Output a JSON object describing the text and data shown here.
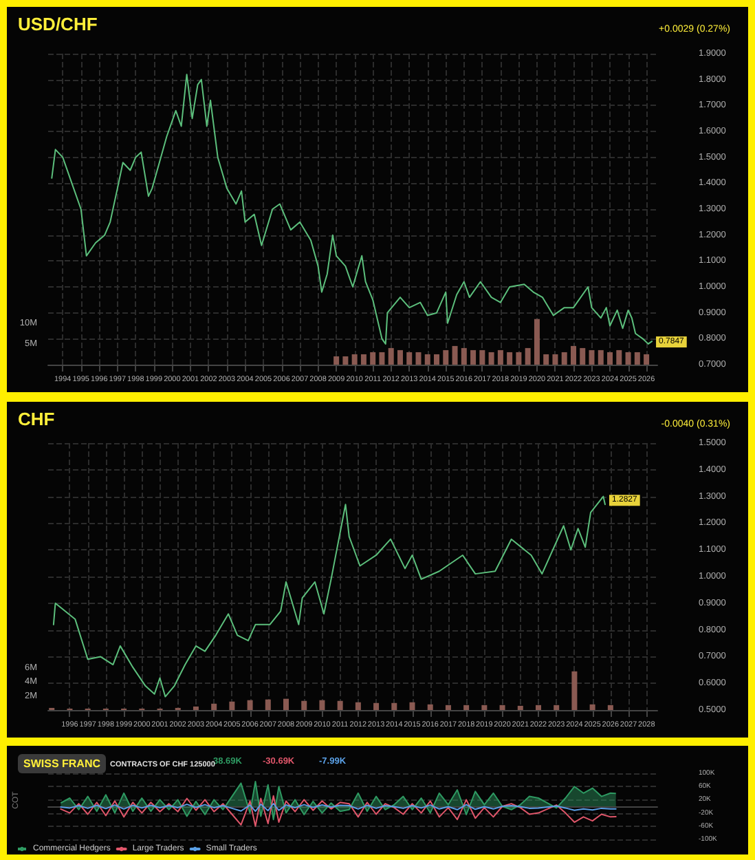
{
  "chart_data": [
    {
      "type": "line",
      "title": "USD/CHF",
      "subtitle": "+0.0029 (0.27%)",
      "grid": true,
      "legend": false,
      "marker": "none",
      "xlim": [
        1993.2,
        2026.6
      ],
      "xticks": [
        1994,
        1995,
        1996,
        1997,
        1998,
        1999,
        2000,
        2001,
        2002,
        2003,
        2004,
        2005,
        2006,
        2007,
        2008,
        2009,
        2010,
        2011,
        2012,
        2013,
        2014,
        2015,
        2016,
        2017,
        2018,
        2019,
        2020,
        2021,
        2022,
        2023,
        2024,
        2025,
        2026
      ],
      "ylim": [
        0.7,
        1.9
      ],
      "yticks": [
        {
          "value": 0.7,
          "label": "0.7000"
        },
        {
          "value": 0.8,
          "label": "0.8000"
        },
        {
          "value": 0.9,
          "label": "0.9000"
        },
        {
          "value": 1.0,
          "label": "1.0000"
        },
        {
          "value": 1.1,
          "label": "1.1000"
        },
        {
          "value": 1.2,
          "label": "1.2000"
        },
        {
          "value": 1.3,
          "label": "1.3000"
        },
        {
          "value": 1.4,
          "label": "1.4000"
        },
        {
          "value": 1.5,
          "label": "1.5000"
        },
        {
          "value": 1.6,
          "label": "1.6000"
        },
        {
          "value": 1.7,
          "label": "1.7000"
        },
        {
          "value": 1.8,
          "label": "1.8000"
        },
        {
          "value": 1.9,
          "label": "1.9000"
        }
      ],
      "y2lim": [
        0,
        75
      ],
      "y2ticks": [
        {
          "value": 5,
          "label": "5M"
        },
        {
          "value": 10,
          "label": "10M"
        }
      ],
      "annotations": [
        {
          "text": "0.7847",
          "x": 2026.3,
          "y": 0.7847
        }
      ],
      "series": [
        {
          "color": "#5cbf7c",
          "x": [
            1993.4,
            1993.6,
            1994.0,
            1994.5,
            1995.0,
            1995.3,
            1995.8,
            1996.3,
            1996.6,
            1997.0,
            1997.3,
            1997.7,
            1998.0,
            1998.3,
            1998.7,
            1998.9,
            1999.3,
            1999.7,
            2000.2,
            2000.5,
            2000.8,
            2001.1,
            2001.4,
            2001.6,
            2001.9,
            2002.1,
            2002.5,
            2003.0,
            2003.5,
            2003.8,
            2004.0,
            2004.5,
            2004.9,
            2005.5,
            2005.9,
            2006.5,
            2007.0,
            2007.6,
            2008.0,
            2008.2,
            2008.5,
            2008.8,
            2009.0,
            2009.5,
            2009.9,
            2010.4,
            2010.6,
            2011.0,
            2011.5,
            2011.7,
            2011.8,
            2012.5,
            2013.0,
            2013.6,
            2014.0,
            2014.5,
            2015.0,
            2015.1,
            2015.6,
            2016.0,
            2016.3,
            2016.9,
            2017.5,
            2018.0,
            2018.5,
            2019.3,
            2019.8,
            2020.3,
            2020.9,
            2021.5,
            2022.0,
            2022.8,
            2023.0,
            2023.5,
            2023.8,
            2024.0,
            2024.4,
            2024.7,
            2025.0,
            2025.2,
            2025.4,
            2025.8,
            2026.1,
            2026.3
          ],
          "values": [
            1.42,
            1.53,
            1.5,
            1.4,
            1.3,
            1.12,
            1.17,
            1.2,
            1.25,
            1.38,
            1.48,
            1.45,
            1.5,
            1.52,
            1.35,
            1.38,
            1.48,
            1.58,
            1.68,
            1.62,
            1.82,
            1.65,
            1.78,
            1.8,
            1.62,
            1.72,
            1.5,
            1.38,
            1.32,
            1.37,
            1.25,
            1.28,
            1.16,
            1.3,
            1.32,
            1.22,
            1.25,
            1.18,
            1.08,
            0.98,
            1.05,
            1.2,
            1.12,
            1.08,
            1.0,
            1.12,
            1.02,
            0.95,
            0.8,
            0.78,
            0.9,
            0.96,
            0.92,
            0.94,
            0.89,
            0.9,
            0.98,
            0.86,
            0.97,
            1.02,
            0.96,
            1.02,
            0.96,
            0.94,
            1.0,
            1.01,
            0.98,
            0.96,
            0.89,
            0.92,
            0.92,
            1.0,
            0.92,
            0.88,
            0.92,
            0.85,
            0.91,
            0.84,
            0.91,
            0.88,
            0.82,
            0.8,
            0.78,
            0.79
          ]
        },
        {
          "type": "bar",
          "axis": "y2",
          "color": "#8a5a52",
          "x": [
            2009.0,
            2009.5,
            2010.0,
            2010.5,
            2011.0,
            2011.5,
            2012.0,
            2012.5,
            2013.0,
            2013.5,
            2014.0,
            2014.5,
            2015.0,
            2015.5,
            2016.0,
            2016.5,
            2017.0,
            2017.5,
            2018.0,
            2018.5,
            2019.0,
            2019.5,
            2020.0,
            2020.5,
            2021.0,
            2021.5,
            2022.0,
            2022.5,
            2023.0,
            2023.5,
            2024.0,
            2024.5,
            2025.0,
            2025.5,
            2026.0
          ],
          "values": [
            2,
            2,
            2.5,
            2.5,
            3,
            3,
            4,
            3.5,
            3,
            3,
            2.5,
            2.5,
            3.5,
            4.5,
            4,
            3.5,
            3.5,
            3,
            3.5,
            3,
            3,
            4,
            11,
            2.5,
            2.5,
            3,
            4.5,
            4,
            3.5,
            3.5,
            3,
            3.5,
            3,
            3,
            2.5
          ]
        }
      ]
    },
    {
      "type": "line",
      "title": "CHF",
      "subtitle": "-0.0040 (0.31%)",
      "grid": true,
      "legend": false,
      "marker": "none",
      "xlim": [
        1994.8,
        2028.6
      ],
      "xticks": [
        1996,
        1997,
        1998,
        1999,
        2000,
        2001,
        2002,
        2003,
        2004,
        2005,
        2006,
        2007,
        2008,
        2009,
        2010,
        2011,
        2012,
        2013,
        2014,
        2015,
        2016,
        2017,
        2018,
        2019,
        2020,
        2021,
        2022,
        2023,
        2024,
        2025,
        2026,
        2027,
        2028
      ],
      "ylim": [
        0.5,
        1.5
      ],
      "yticks": [
        {
          "value": 0.5,
          "label": "0.5000"
        },
        {
          "value": 0.6,
          "label": "0.6000"
        },
        {
          "value": 0.7,
          "label": "0.7000"
        },
        {
          "value": 0.8,
          "label": "0.8000"
        },
        {
          "value": 0.9,
          "label": "0.9000"
        },
        {
          "value": 1.0,
          "label": "1.0000"
        },
        {
          "value": 1.1,
          "label": "1.1000"
        },
        {
          "value": 1.2,
          "label": "1.2000"
        },
        {
          "value": 1.3,
          "label": "1.3000"
        },
        {
          "value": 1.4,
          "label": "1.4000"
        },
        {
          "value": 1.5,
          "label": "1.5000"
        }
      ],
      "y2lim": [
        0,
        38
      ],
      "y2ticks": [
        {
          "value": 2,
          "label": "2M"
        },
        {
          "value": 4,
          "label": "4M"
        },
        {
          "value": 6,
          "label": "6M"
        }
      ],
      "annotations": [
        {
          "text": "1.2827",
          "x": 2025.7,
          "y": 1.2827
        }
      ],
      "series": [
        {
          "color": "#5cbf7c",
          "x": [
            1995.1,
            1995.2,
            1996.3,
            1997.0,
            1997.7,
            1998.4,
            1998.8,
            1999.5,
            2000.2,
            2000.7,
            2001.0,
            2001.3,
            2001.8,
            2002.4,
            2003.0,
            2003.5,
            2004.1,
            2004.8,
            2005.3,
            2005.9,
            2006.3,
            2007.1,
            2007.7,
            2008.0,
            2008.7,
            2008.9,
            2009.6,
            2010.1,
            2010.5,
            2011.3,
            2011.5,
            2012.1,
            2013.0,
            2013.8,
            2014.6,
            2015.0,
            2015.5,
            2016.5,
            2017.8,
            2018.5,
            2019.6,
            2020.5,
            2021.6,
            2022.2,
            2023.4,
            2023.8,
            2024.2,
            2024.6,
            2024.9,
            2025.6,
            2025.7
          ],
          "values": [
            0.82,
            0.9,
            0.84,
            0.69,
            0.7,
            0.67,
            0.74,
            0.66,
            0.59,
            0.56,
            0.62,
            0.55,
            0.59,
            0.67,
            0.74,
            0.72,
            0.78,
            0.86,
            0.78,
            0.76,
            0.82,
            0.82,
            0.87,
            0.98,
            0.82,
            0.92,
            0.98,
            0.86,
            0.99,
            1.27,
            1.15,
            1.04,
            1.08,
            1.14,
            1.03,
            1.08,
            0.99,
            1.02,
            1.08,
            1.01,
            1.02,
            1.14,
            1.08,
            1.01,
            1.19,
            1.1,
            1.18,
            1.11,
            1.24,
            1.3,
            1.27
          ]
        },
        {
          "type": "bar",
          "axis": "y2",
          "color": "#8a5a52",
          "x": [
            1995,
            1996,
            1997,
            1998,
            1999,
            2000,
            2001,
            2002,
            2003,
            2004,
            2005,
            2006,
            2007,
            2008,
            2009,
            2010,
            2011,
            2012,
            2013,
            2014,
            2015,
            2016,
            2017,
            2018,
            2019,
            2020,
            2021,
            2022,
            2023,
            2024,
            2025,
            2026
          ],
          "values": [
            0.3,
            0.2,
            0.2,
            0.2,
            0.2,
            0.2,
            0.2,
            0.3,
            0.5,
            0.9,
            1.2,
            1.4,
            1.5,
            1.6,
            1.3,
            1.4,
            1.3,
            1.1,
            1.0,
            1.0,
            1.1,
            0.8,
            0.7,
            0.7,
            0.7,
            0.7,
            0.6,
            0.7,
            0.7,
            5.5,
            0.8,
            0.7
          ]
        }
      ]
    },
    {
      "type": "line",
      "title": "SWISS FRANC",
      "subtitle": "CONTRACTS OF CHF 125000",
      "ylabel": "COT",
      "grid": true,
      "legend": "bottom left",
      "marker": "none",
      "tick_labels": "y",
      "annotations": [
        "38.69K",
        "-30.69K",
        "-7.99K"
      ],
      "xlim": [
        1994.8,
        2028.6
      ],
      "ylim": [
        -100,
        100
      ],
      "yticks": [
        {
          "value": -100,
          "label": "-100K"
        },
        {
          "value": -60,
          "label": "-60K"
        },
        {
          "value": -20,
          "label": "-20K"
        },
        {
          "value": 20,
          "label": "20K"
        },
        {
          "value": 60,
          "label": "60K"
        },
        {
          "value": 100,
          "label": "100K"
        }
      ],
      "x": [
        1995.5,
        1996,
        1996.5,
        1997,
        1997.5,
        1998,
        1998.5,
        1999,
        1999.5,
        2000,
        2000.5,
        2001,
        2001.5,
        2002,
        2002.5,
        2003,
        2003.5,
        2004,
        2004.5,
        2005,
        2005.5,
        2006,
        2006.3,
        2006.6,
        2007,
        2007.3,
        2007.6,
        2008,
        2008.5,
        2009,
        2009.5,
        2010,
        2010.5,
        2011,
        2011.5,
        2012,
        2012.5,
        2013,
        2013.5,
        2014,
        2014.5,
        2015,
        2015.5,
        2016,
        2016.5,
        2017,
        2017.5,
        2018,
        2018.5,
        2019,
        2019.5,
        2020,
        2020.5,
        2021,
        2021.5,
        2022,
        2022.5,
        2023,
        2023.5,
        2024,
        2024.5,
        2025,
        2025.5,
        2026,
        2026.3
      ],
      "series": [
        {
          "name": "Commercial Hedgers",
          "type": "area",
          "color": "#2e9a62",
          "values": [
            10,
            25,
            -10,
            30,
            -15,
            35,
            -20,
            40,
            -15,
            25,
            -15,
            20,
            -10,
            20,
            -30,
            15,
            -25,
            20,
            -10,
            30,
            70,
            -20,
            75,
            -30,
            65,
            -40,
            60,
            -20,
            20,
            -25,
            15,
            -20,
            10,
            -15,
            -10,
            40,
            -15,
            30,
            -10,
            5,
            30,
            -10,
            25,
            -20,
            40,
            5,
            50,
            -25,
            45,
            5,
            40,
            0,
            -10,
            5,
            30,
            25,
            10,
            -5,
            25,
            60,
            40,
            55,
            30,
            40,
            39
          ]
        },
        {
          "name": "Large Traders",
          "color": "#e0566a",
          "values": [
            -8,
            -20,
            8,
            -24,
            12,
            -28,
            16,
            -32,
            12,
            -20,
            12,
            -16,
            8,
            -16,
            24,
            -12,
            20,
            -16,
            8,
            -24,
            -56,
            16,
            -60,
            24,
            -52,
            32,
            -48,
            16,
            -16,
            20,
            -12,
            16,
            -8,
            12,
            8,
            -32,
            12,
            -24,
            8,
            -4,
            -24,
            8,
            -20,
            16,
            -32,
            -4,
            -40,
            20,
            -36,
            -4,
            -32,
            0,
            8,
            -4,
            -24,
            -20,
            -8,
            4,
            -20,
            -48,
            -32,
            -44,
            -24,
            -32,
            -31
          ]
        },
        {
          "name": "Small Traders",
          "color": "#5aa0e6",
          "values": [
            -2,
            -5,
            2,
            -6,
            3,
            -7,
            4,
            -8,
            3,
            -5,
            3,
            -4,
            2,
            -4,
            6,
            -3,
            5,
            -4,
            2,
            -6,
            -14,
            4,
            -15,
            6,
            -13,
            8,
            -12,
            4,
            -4,
            5,
            -3,
            4,
            -2,
            3,
            2,
            -8,
            3,
            -6,
            2,
            -1,
            -6,
            2,
            -5,
            4,
            -8,
            -1,
            -10,
            5,
            -9,
            -1,
            -8,
            0,
            2,
            -1,
            -6,
            -5,
            -2,
            1,
            -5,
            -12,
            -8,
            -11,
            -6,
            -8,
            -8
          ]
        }
      ]
    }
  ]
}
